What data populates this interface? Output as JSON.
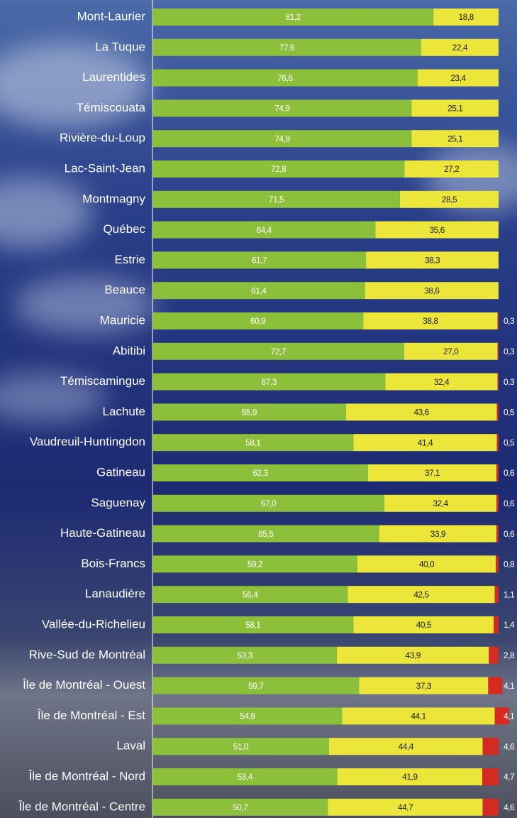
{
  "chart_data": {
    "type": "stacked-bar-horizontal",
    "categories": [
      "Mont-Laurier",
      "La Tuque",
      "Laurentides",
      "Témiscouata",
      "Rivière-du-Loup",
      "Lac-Saint-Jean",
      "Montmagny",
      "Québec",
      "Estrie",
      "Beauce",
      "Mauricie",
      "Abitibi",
      "Témiscamingue",
      "Lachute",
      "Vaudreuil-Huntingdon",
      "Gatineau",
      "Saguenay",
      "Haute-Gatineau",
      "Bois-Francs",
      "Lanaudière",
      "Vallée-du-Richelieu",
      "Rive-Sud de Montréal",
      "Île de Montréal - Ouest",
      "Île de Montréal - Est",
      "Laval",
      "Île de Montréal - Nord",
      "Île de Montréal - Centre"
    ],
    "series": [
      {
        "color": "#8cbf3a",
        "label_color": "#ffffff",
        "values": [
          81.2,
          77.6,
          76.6,
          74.9,
          74.9,
          72.8,
          71.5,
          64.4,
          61.7,
          61.4,
          60.9,
          72.7,
          67.3,
          55.9,
          58.1,
          62.3,
          67.0,
          65.5,
          59.2,
          56.4,
          58.1,
          53.3,
          59.7,
          54.8,
          51.0,
          53.4,
          50.7
        ],
        "value_labels": [
          "81,2",
          "77,6",
          "76,6",
          "74,9",
          "74,9",
          "72,8",
          "71,5",
          "64,4",
          "61,7",
          "61,4",
          "60,9",
          "72,7",
          "67,3",
          "55,9",
          "58,1",
          "62,3",
          "67,0",
          "65,5",
          "59,2",
          "56,4",
          "58,1",
          "53,3",
          "59,7",
          "54,8",
          "51,0",
          "53,4",
          "50,7"
        ]
      },
      {
        "color": "#ede63a",
        "label_color": "#222222",
        "values": [
          18.8,
          22.4,
          23.4,
          25.1,
          25.1,
          27.2,
          28.5,
          35.6,
          38.3,
          38.6,
          38.8,
          27.0,
          32.4,
          43.6,
          41.4,
          37.1,
          32.4,
          33.9,
          40.0,
          42.5,
          40.5,
          43.9,
          37.3,
          44.1,
          44.4,
          41.9,
          44.7
        ],
        "value_labels": [
          "18,8",
          "22,4",
          "23,4",
          "25,1",
          "25,1",
          "27,2",
          "28,5",
          "35,6",
          "38,3",
          "38,6",
          "38,8",
          "27,0",
          "32,4",
          "43,6",
          "41,4",
          "37,1",
          "32,4",
          "33,9",
          "40,0",
          "42,5",
          "40,5",
          "43,9",
          "37,3",
          "44,1",
          "44,4",
          "41,9",
          "44,7"
        ]
      },
      {
        "color": "#d42a22",
        "label_color": "#ffffff",
        "values": [
          null,
          null,
          null,
          null,
          null,
          null,
          null,
          null,
          null,
          null,
          0.3,
          0.3,
          0.3,
          0.5,
          0.5,
          0.6,
          0.6,
          0.6,
          0.8,
          1.1,
          1.4,
          2.8,
          4.1,
          4.1,
          4.6,
          4.7,
          4.6
        ],
        "value_labels": [
          null,
          null,
          null,
          null,
          null,
          null,
          null,
          null,
          null,
          null,
          "0,3",
          "0,3",
          "0,3",
          "0,5",
          "0,5",
          "0,6",
          "0,6",
          "0,6",
          "0,8",
          "1,1",
          "1,4",
          "2,8",
          "4,1",
          "4,1",
          "4,6",
          "4,7",
          "4,6"
        ]
      }
    ],
    "xlim": [
      0,
      100
    ]
  }
}
